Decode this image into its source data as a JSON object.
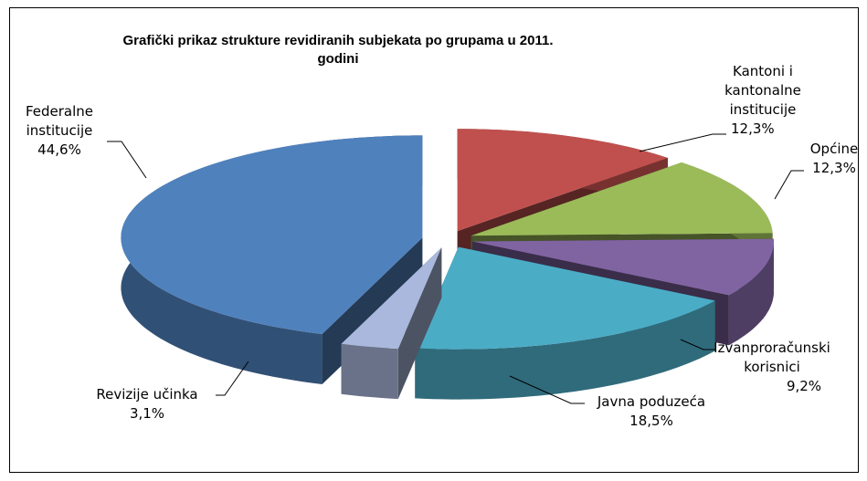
{
  "chart_data": {
    "type": "pie",
    "title": "Grafički prikaz strukture revidiranih subjekata po grupama u 2011. godini",
    "categories": [
      "Kantoni i kantonalne institucije",
      "Općine",
      "Izvanproračunski korisnici",
      "Javna poduzeća",
      "Revizije učinka",
      "Federalne institucije"
    ],
    "values": [
      12.3,
      12.3,
      9.2,
      18.5,
      3.1,
      44.6
    ],
    "value_labels": [
      "12,3%",
      "12,3%",
      "9,2%",
      "18,5%",
      "3,1%",
      "44,6%"
    ],
    "colors": [
      "#c0504d",
      "#9bbb59",
      "#8064a2",
      "#4bacc6",
      "#a9b8dc",
      "#4f81bd"
    ]
  }
}
